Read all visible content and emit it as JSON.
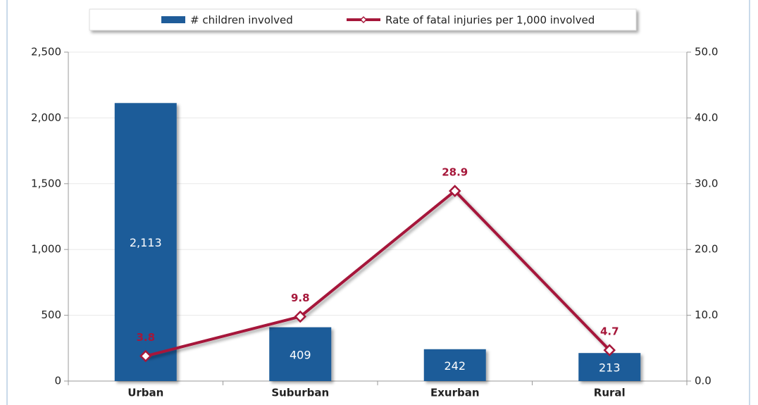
{
  "chart_data": {
    "type": "combo",
    "categories": [
      "Urban",
      "Suburban",
      "Exurban",
      "Rural"
    ],
    "series": [
      {
        "name": "# children involved",
        "type": "bar",
        "color": "#1f5c99",
        "values": [
          2113,
          409,
          242,
          213
        ],
        "value_labels": [
          "2,113",
          "409",
          "242",
          "213"
        ]
      },
      {
        "name": "Rate of fatal injuries per 1,000 involved",
        "type": "line",
        "axis": "y2",
        "color": "#a6173a",
        "values": [
          3.8,
          9.8,
          28.9,
          4.7
        ]
      }
    ],
    "ylim": [
      0,
      2500
    ],
    "yticks": [
      0,
      500,
      {
        "value": 1000,
        "label": "1,000"
      },
      {
        "value": 1500,
        "label": "1,500"
      },
      {
        "value": 2000,
        "label": "2,000"
      },
      {
        "value": 2500,
        "label": "2,500"
      }
    ],
    "y2lim": [
      0,
      50
    ],
    "y2ticks": [
      {
        "value": 0,
        "label": "0.0"
      },
      {
        "value": 10,
        "label": "10.0"
      },
      {
        "value": 20,
        "label": "20.0"
      },
      {
        "value": 30,
        "label": "30.0"
      },
      {
        "value": 40,
        "label": "40.0"
      },
      {
        "value": 50,
        "label": "50.0"
      }
    ],
    "grid": true,
    "legend": "top"
  }
}
